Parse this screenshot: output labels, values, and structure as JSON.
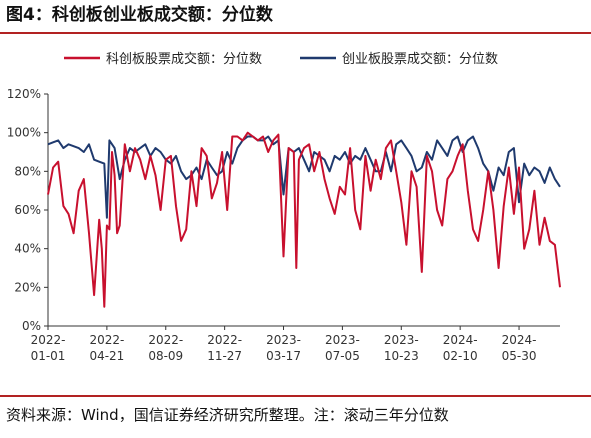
{
  "figure_title": "图4：科创板创业板成交额：分位数",
  "note": "资料来源：Wind，国信证券经济研究所整理。注：滚动三年分位数",
  "colors": {
    "red": "#c8102e",
    "blue": "#1f3a6e",
    "axis": "#333333"
  },
  "chart_data": {
    "type": "line",
    "title": "",
    "xlabel": "",
    "ylabel": "",
    "ylim": [
      0,
      120
    ],
    "yticks": [
      "0%",
      "20%",
      "40%",
      "60%",
      "80%",
      "100%",
      "120%"
    ],
    "xticks": [
      {
        "line1": "2022-",
        "line2": "01-01",
        "t": 0.0
      },
      {
        "line1": "2022-",
        "line2": "04-21",
        "t": 0.115
      },
      {
        "line1": "2022-",
        "line2": "08-09",
        "t": 0.23
      },
      {
        "line1": "2022-",
        "line2": "11-27",
        "t": 0.345
      },
      {
        "line1": "2023-",
        "line2": "03-17",
        "t": 0.46
      },
      {
        "line1": "2023-",
        "line2": "07-05",
        "t": 0.575
      },
      {
        "line1": "2023-",
        "line2": "10-23",
        "t": 0.69
      },
      {
        "line1": "2024-",
        "line2": "02-10",
        "t": 0.805
      },
      {
        "line1": "2024-",
        "line2": "05-30",
        "t": 0.92
      }
    ],
    "grid": false,
    "legend_position": "top",
    "series": [
      {
        "name": "科创板股票成交额：分位数",
        "color": "#c8102e",
        "x": [
          0.0,
          0.01,
          0.02,
          0.03,
          0.04,
          0.05,
          0.06,
          0.07,
          0.08,
          0.09,
          0.1,
          0.105,
          0.11,
          0.115,
          0.12,
          0.125,
          0.13,
          0.135,
          0.14,
          0.15,
          0.16,
          0.17,
          0.18,
          0.19,
          0.2,
          0.21,
          0.22,
          0.23,
          0.24,
          0.25,
          0.26,
          0.27,
          0.28,
          0.29,
          0.3,
          0.31,
          0.32,
          0.33,
          0.34,
          0.35,
          0.36,
          0.37,
          0.38,
          0.39,
          0.4,
          0.41,
          0.42,
          0.43,
          0.44,
          0.45,
          0.46,
          0.47,
          0.48,
          0.485,
          0.49,
          0.5,
          0.51,
          0.52,
          0.53,
          0.54,
          0.55,
          0.56,
          0.57,
          0.58,
          0.59,
          0.6,
          0.61,
          0.62,
          0.63,
          0.64,
          0.65,
          0.66,
          0.67,
          0.68,
          0.69,
          0.7,
          0.71,
          0.72,
          0.73,
          0.74,
          0.75,
          0.76,
          0.77,
          0.78,
          0.79,
          0.8,
          0.81,
          0.82,
          0.83,
          0.84,
          0.85,
          0.86,
          0.87,
          0.88,
          0.89,
          0.9,
          0.91,
          0.92,
          0.93,
          0.94,
          0.95,
          0.96,
          0.97,
          0.98,
          0.99,
          1.0
        ],
        "values": [
          68,
          82,
          85,
          62,
          58,
          48,
          70,
          76,
          48,
          16,
          55,
          40,
          10,
          52,
          50,
          90,
          78,
          48,
          52,
          94,
          80,
          92,
          86,
          76,
          88,
          78,
          60,
          86,
          88,
          62,
          44,
          50,
          80,
          62,
          92,
          88,
          66,
          74,
          90,
          60,
          98,
          98,
          96,
          100,
          98,
          96,
          98,
          90,
          96,
          99,
          36,
          92,
          90,
          30,
          86,
          92,
          94,
          80,
          90,
          76,
          66,
          58,
          72,
          68,
          92,
          60,
          50,
          88,
          70,
          86,
          76,
          92,
          96,
          80,
          64,
          42,
          80,
          72,
          28,
          88,
          80,
          60,
          52,
          76,
          80,
          88,
          94,
          70,
          50,
          44,
          60,
          80,
          60,
          30,
          62,
          82,
          58,
          82,
          40,
          50,
          70,
          42,
          56,
          44,
          42,
          20
        ]
      },
      {
        "name": "创业板股票成交额：分位数",
        "color": "#1f3a6e",
        "x": [
          0.0,
          0.01,
          0.02,
          0.03,
          0.04,
          0.05,
          0.06,
          0.07,
          0.08,
          0.09,
          0.1,
          0.11,
          0.115,
          0.12,
          0.13,
          0.14,
          0.15,
          0.16,
          0.17,
          0.18,
          0.19,
          0.2,
          0.21,
          0.22,
          0.23,
          0.24,
          0.25,
          0.26,
          0.27,
          0.28,
          0.29,
          0.3,
          0.31,
          0.32,
          0.33,
          0.34,
          0.35,
          0.36,
          0.37,
          0.38,
          0.39,
          0.4,
          0.41,
          0.42,
          0.43,
          0.44,
          0.45,
          0.46,
          0.47,
          0.48,
          0.49,
          0.5,
          0.51,
          0.52,
          0.53,
          0.54,
          0.55,
          0.56,
          0.57,
          0.58,
          0.59,
          0.6,
          0.61,
          0.62,
          0.63,
          0.64,
          0.65,
          0.66,
          0.67,
          0.68,
          0.69,
          0.7,
          0.71,
          0.72,
          0.73,
          0.74,
          0.75,
          0.76,
          0.77,
          0.78,
          0.79,
          0.8,
          0.81,
          0.82,
          0.83,
          0.84,
          0.85,
          0.86,
          0.87,
          0.88,
          0.89,
          0.9,
          0.91,
          0.92,
          0.93,
          0.94,
          0.95,
          0.96,
          0.97,
          0.98,
          0.99,
          1.0
        ],
        "values": [
          94,
          95,
          96,
          92,
          94,
          93,
          92,
          90,
          94,
          86,
          85,
          84,
          56,
          96,
          92,
          76,
          86,
          92,
          90,
          92,
          94,
          88,
          92,
          90,
          86,
          84,
          88,
          80,
          76,
          78,
          82,
          76,
          86,
          82,
          78,
          80,
          90,
          84,
          92,
          96,
          98,
          98,
          96,
          96,
          98,
          94,
          96,
          68,
          92,
          90,
          92,
          86,
          80,
          90,
          88,
          86,
          80,
          88,
          86,
          90,
          84,
          88,
          86,
          92,
          86,
          80,
          80,
          90,
          80,
          94,
          96,
          92,
          88,
          80,
          82,
          90,
          86,
          96,
          92,
          88,
          96,
          98,
          90,
          96,
          98,
          92,
          84,
          80,
          70,
          82,
          78,
          90,
          92,
          64,
          84,
          78,
          82,
          80,
          74,
          82,
          76,
          72
        ]
      }
    ]
  }
}
